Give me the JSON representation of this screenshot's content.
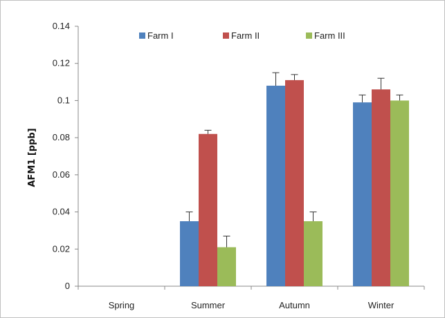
{
  "chart_data": {
    "type": "bar",
    "title": "",
    "xlabel": "",
    "ylabel": "AFM1 [ppb]",
    "ylim": [
      0,
      0.14
    ],
    "yticks": [
      0,
      0.02,
      0.04,
      0.06,
      0.08,
      0.1,
      0.12,
      0.14
    ],
    "ytick_labels": [
      "0",
      "0.02",
      "0.04",
      "0.06",
      "0.08",
      "0.1",
      "0.12",
      "0.14"
    ],
    "categories": [
      "Spring",
      "Summer",
      "Autumn",
      "Winter"
    ],
    "series": [
      {
        "name": "Farm I",
        "color": "#4f81bd",
        "values": [
          0,
          0.035,
          0.108,
          0.099
        ],
        "errors": [
          0,
          0.005,
          0.007,
          0.004
        ]
      },
      {
        "name": "Farm II",
        "color": "#c0504d",
        "values": [
          0,
          0.082,
          0.111,
          0.106
        ],
        "errors": [
          0,
          0.002,
          0.003,
          0.006
        ]
      },
      {
        "name": "Farm III",
        "color": "#9bbb59",
        "values": [
          0,
          0.021,
          0.035,
          0.1
        ],
        "errors": [
          0,
          0.006,
          0.005,
          0.003
        ]
      }
    ],
    "legend_position": "top",
    "grid": false
  }
}
